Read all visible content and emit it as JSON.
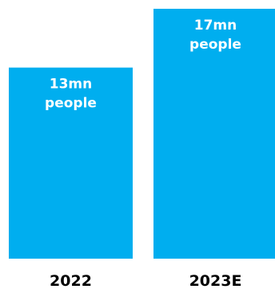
{
  "colors": {
    "bar": "#00aeef",
    "bar_label": "#ffffff",
    "category_label": "#000000",
    "background": "#ffffff"
  },
  "chart_data": {
    "type": "bar",
    "title": "",
    "xlabel": "",
    "ylabel": "",
    "categories": [
      "2022",
      "2023E"
    ],
    "values": [
      13,
      17
    ],
    "unit": "mn",
    "data_labels": [
      [
        "13mn",
        "people"
      ],
      [
        "17mn",
        "people"
      ]
    ],
    "ylim": [
      0,
      17
    ],
    "grid": false,
    "legend": "none"
  }
}
